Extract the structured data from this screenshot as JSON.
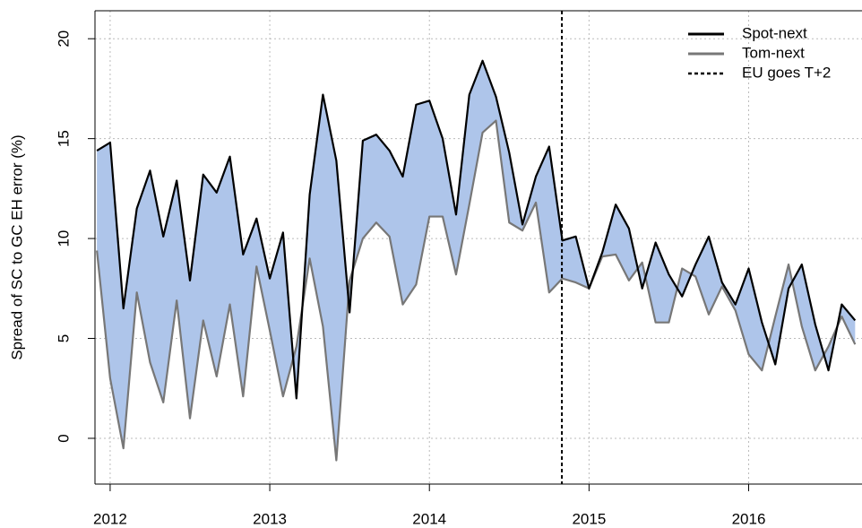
{
  "chart_data": {
    "type": "line",
    "y_label": "Spread of SC to GC EH error (%)",
    "x": [
      2011.917,
      2012.0,
      2012.083,
      2012.167,
      2012.25,
      2012.333,
      2012.417,
      2012.5,
      2012.583,
      2012.667,
      2012.75,
      2012.833,
      2012.917,
      2013.0,
      2013.083,
      2013.167,
      2013.25,
      2013.333,
      2013.417,
      2013.5,
      2013.583,
      2013.667,
      2013.75,
      2013.833,
      2013.917,
      2014.0,
      2014.083,
      2014.167,
      2014.25,
      2014.333,
      2014.417,
      2014.5,
      2014.583,
      2014.667,
      2014.75,
      2014.833,
      2014.917,
      2015.0,
      2015.083,
      2015.167,
      2015.25,
      2015.333,
      2015.417,
      2015.5,
      2015.583,
      2015.667,
      2015.75,
      2015.833,
      2015.917,
      2016.0,
      2016.083,
      2016.167,
      2016.25,
      2016.333,
      2016.417,
      2016.5,
      2016.583,
      2016.667
    ],
    "series": [
      {
        "name": "Spot-next",
        "color": "#000000",
        "values": [
          14.4,
          14.8,
          6.5,
          11.5,
          13.4,
          10.1,
          12.9,
          7.9,
          13.2,
          12.3,
          14.1,
          9.2,
          11.0,
          8.0,
          10.3,
          2.0,
          12.2,
          17.2,
          13.9,
          6.3,
          14.9,
          15.2,
          14.4,
          13.1,
          16.7,
          16.9,
          15.0,
          11.2,
          17.2,
          18.9,
          17.1,
          14.3,
          10.7,
          13.1,
          14.6,
          9.9,
          10.1,
          7.5,
          9.3,
          11.7,
          10.5,
          7.5,
          9.8,
          8.2,
          7.1,
          8.7,
          10.1,
          7.8,
          6.7,
          8.5,
          5.8,
          3.7,
          7.5,
          8.7,
          5.7,
          3.4,
          6.7,
          5.9
        ]
      },
      {
        "name": "Tom-next",
        "color": "#777777",
        "values": [
          9.4,
          3.0,
          -0.5,
          7.3,
          3.8,
          1.8,
          6.9,
          1.0,
          5.9,
          3.1,
          6.7,
          2.1,
          8.6,
          5.4,
          2.1,
          4.6,
          9.0,
          5.6,
          -1.1,
          7.9,
          10.0,
          10.8,
          10.1,
          6.7,
          7.7,
          11.1,
          11.1,
          8.2,
          11.7,
          15.3,
          15.9,
          10.8,
          10.4,
          11.8,
          7.3,
          8.0,
          7.8,
          7.5,
          9.1,
          9.2,
          7.9,
          8.8,
          5.8,
          5.8,
          8.5,
          8.1,
          6.2,
          7.6,
          6.4,
          4.2,
          3.4,
          6.1,
          8.7,
          5.6,
          3.4,
          4.6,
          6.1,
          4.7
        ]
      }
    ],
    "fill_color": "#aec5ea",
    "vline": {
      "name": "EU goes T+2",
      "x": 2014.83,
      "color": "#000000"
    },
    "xlim": [
      2011.905,
      2016.71
    ],
    "xticks": [
      2012,
      2013,
      2014,
      2015,
      2016
    ],
    "ylim": [
      -2.29,
      21.4
    ],
    "yticks": [
      0,
      5,
      10,
      15,
      20
    ],
    "grid": true,
    "legend": "top-right"
  }
}
